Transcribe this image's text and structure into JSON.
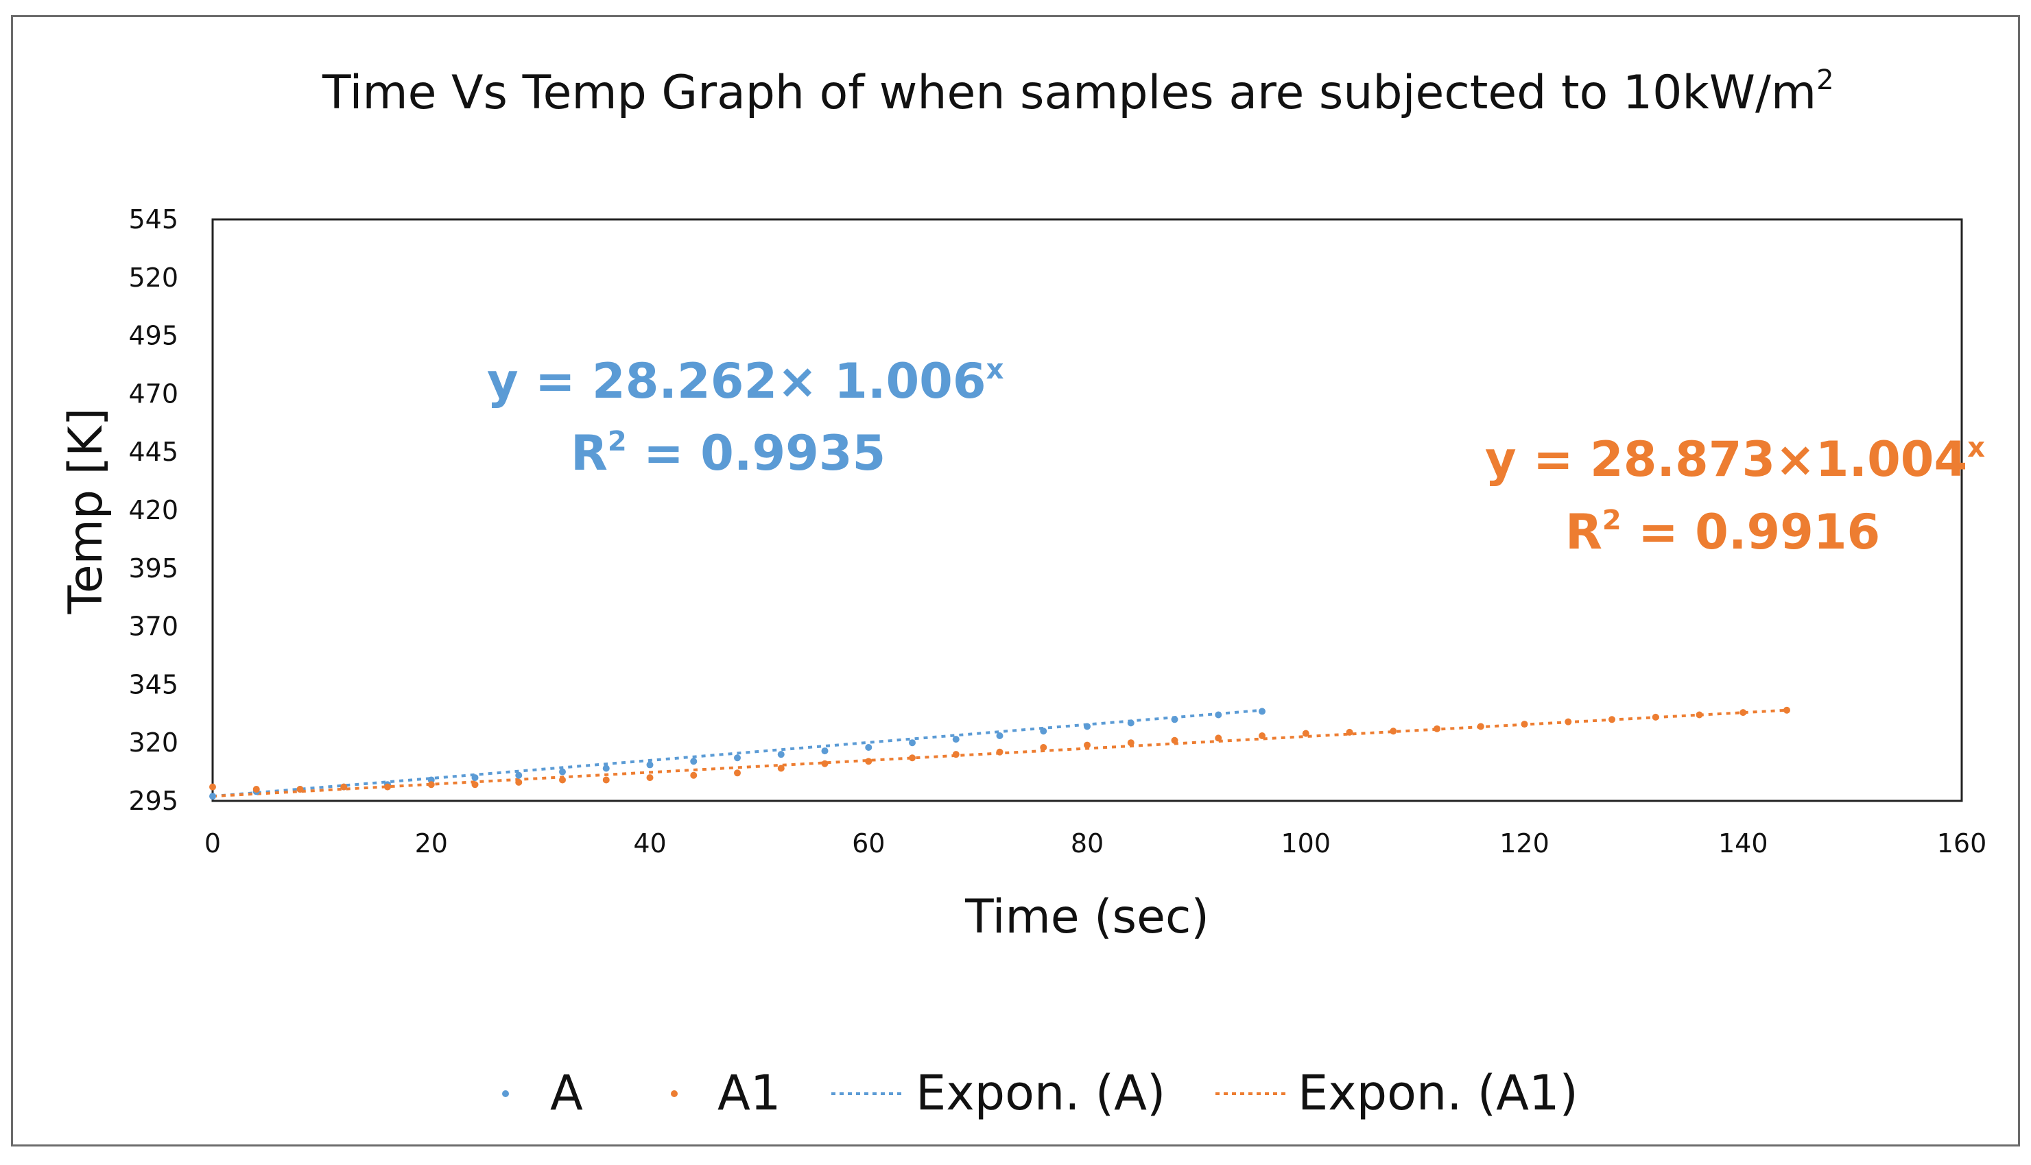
{
  "chart_data": {
    "type": "scatter",
    "title": "Time Vs Temp Graph of when samples are subjected to 10kW/m",
    "title_superscript": "2",
    "xlabel": "Time (sec)",
    "ylabel": "Temp [K]",
    "xlim": [
      0,
      160
    ],
    "ylim": [
      295,
      545
    ],
    "x_ticks": [
      0,
      20,
      40,
      60,
      80,
      100,
      120,
      140,
      160
    ],
    "y_ticks": [
      295,
      320,
      345,
      370,
      395,
      420,
      445,
      470,
      495,
      520,
      545
    ],
    "series": [
      {
        "name": "A",
        "color": "#5b9bd5",
        "x": [
          0,
          4,
          8,
          12,
          16,
          20,
          24,
          28,
          32,
          36,
          40,
          44,
          48,
          52,
          56,
          60,
          64,
          68,
          72,
          76,
          80,
          84,
          88,
          92,
          96
        ],
        "y": [
          297,
          299,
          300,
          301,
          302,
          304,
          305,
          306,
          307.5,
          309,
          310.5,
          312,
          313.5,
          315,
          316.5,
          318,
          320,
          321.5,
          323,
          325,
          327,
          328.5,
          330,
          332,
          333.5
        ]
      },
      {
        "name": "A1",
        "color": "#ed7d31",
        "x": [
          0,
          4,
          8,
          12,
          16,
          20,
          24,
          28,
          32,
          36,
          40,
          44,
          48,
          52,
          56,
          60,
          64,
          68,
          72,
          76,
          80,
          84,
          88,
          92,
          96,
          100,
          104,
          108,
          112,
          116,
          120,
          124,
          128,
          132,
          136,
          140,
          144
        ],
        "y": [
          301,
          300,
          300,
          301,
          301,
          302,
          302,
          303,
          304,
          304,
          305,
          306,
          307,
          309,
          311,
          312,
          313.5,
          315,
          316,
          318,
          319,
          320,
          321,
          322,
          323,
          324,
          324.5,
          325,
          326,
          327,
          328,
          329,
          330,
          331,
          332,
          333,
          334
        ]
      }
    ],
    "trendlines": [
      {
        "name": "Expon. (A)",
        "series": "A",
        "color": "#5b9bd5",
        "a": 28.262,
        "b": 1.006,
        "x_range": [
          0,
          96
        ],
        "y_range": [
          297,
          334
        ]
      },
      {
        "name": "Expon. (A1)",
        "series": "A1",
        "color": "#ed7d31",
        "a": 28.873,
        "b": 1.004,
        "x_range": [
          0,
          144
        ],
        "y_range": [
          297,
          334
        ]
      }
    ],
    "annotations": [
      {
        "equation": "y = 28.262× 1.006",
        "eq_sup": "x",
        "r2_prefix": "R",
        "r2_sup": "2",
        "r2_value": " = 0.9935",
        "color": "#5b9bd5"
      },
      {
        "equation": "y = 28.873×1.004",
        "eq_sup": "x",
        "r2_prefix": "R",
        "r2_sup": "2",
        "r2_value": " = 0.9916",
        "color": "#ed7d31"
      }
    ],
    "legend": [
      "A",
      "A1",
      "Expon. (A)",
      "Expon. (A1)"
    ],
    "legend_position": "bottom",
    "grid": false
  }
}
